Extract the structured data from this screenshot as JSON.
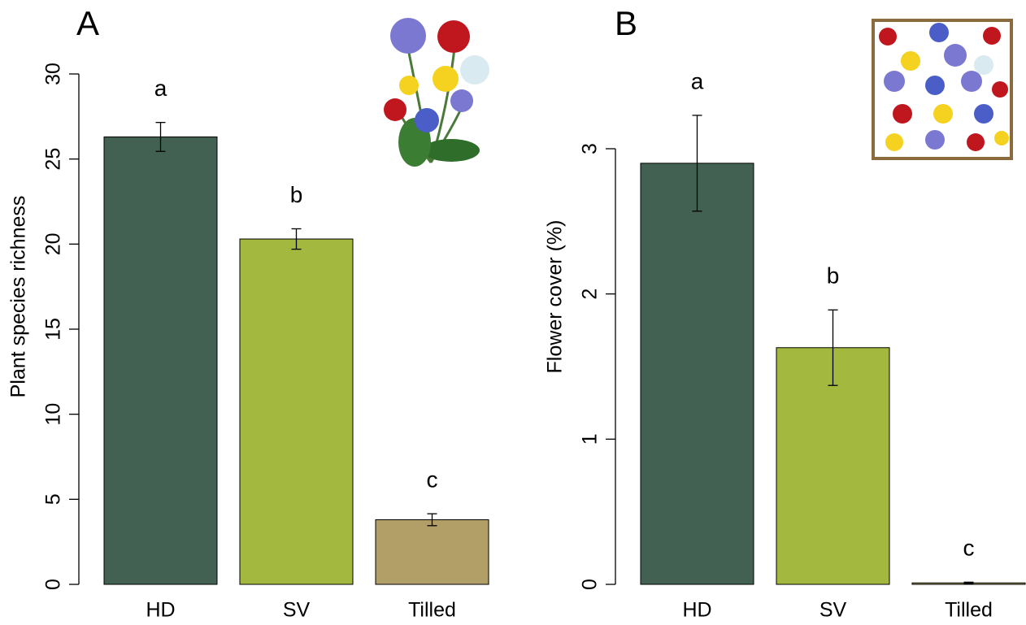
{
  "chart_data": [
    {
      "type": "bar",
      "panel_label": "A",
      "ylabel": "Plant species richness",
      "categories": [
        "HD",
        "SV",
        "Tilled"
      ],
      "values": [
        26.3,
        20.3,
        3.8
      ],
      "errors": [
        0.85,
        0.6,
        0.35
      ],
      "letters": [
        "a",
        "b",
        "c"
      ],
      "colors": [
        "#436153",
        "#a3b83f",
        "#b29f67"
      ],
      "ylim": [
        0,
        30
      ],
      "yticks": [
        0,
        5,
        10,
        15,
        20,
        25,
        30
      ]
    },
    {
      "type": "bar",
      "panel_label": "B",
      "ylabel": "Flower cover (%)",
      "categories": [
        "HD",
        "SV",
        "Tilled"
      ],
      "values": [
        2.9,
        1.63,
        0.01
      ],
      "errors": [
        0.33,
        0.26,
        0.005
      ],
      "letters": [
        "a",
        "b",
        "c"
      ],
      "colors": [
        "#436153",
        "#a3b83f",
        "#b29f67"
      ],
      "ylim": [
        0,
        3
      ],
      "yticks": [
        0,
        1,
        2,
        3
      ]
    }
  ]
}
